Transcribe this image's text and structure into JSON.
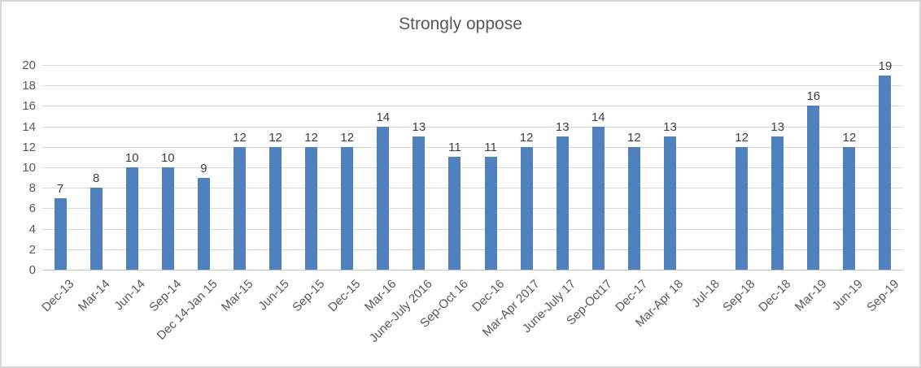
{
  "chart_data": {
    "type": "bar",
    "title": "Strongly oppose",
    "categories": [
      "Dec-13",
      "Mar-14",
      "Jun-14",
      "Sep-14",
      "Dec 14-Jan 15",
      "Mar-15",
      "Jun-15",
      "Sep-15",
      "Dec-15",
      "Mar-16",
      "June-July 2016",
      "Sep-Oct 16",
      "Dec-16",
      "Mar-Apr 2017",
      "June-July 17",
      "Sep-Oct17",
      "Dec-17",
      "Mar-Apr 18",
      "Jul-18",
      "Sep-18",
      "Dec-18",
      "Mar-19",
      "Jun-19",
      "Sep-19"
    ],
    "values": [
      7,
      8,
      10,
      10,
      9,
      12,
      12,
      12,
      12,
      14,
      13,
      11,
      11,
      12,
      13,
      14,
      12,
      13,
      null,
      12,
      13,
      16,
      12,
      19
    ],
    "data_labels": true,
    "xlabel": "",
    "ylabel": "",
    "ylim": [
      0,
      20
    ],
    "ytick_step": 2,
    "yticks": [
      0,
      2,
      4,
      6,
      8,
      10,
      12,
      14,
      16,
      18,
      20
    ],
    "grid": true,
    "legend": false
  },
  "colors": {
    "bar": "#4e81bd",
    "gridline": "#d9d9d9",
    "axis_line": "#c3c3c3",
    "axis_text": "#595959",
    "data_label_text": "#404040",
    "title_text": "#595959",
    "figure_border": "#d6d6d6",
    "background": "#ffffff"
  }
}
